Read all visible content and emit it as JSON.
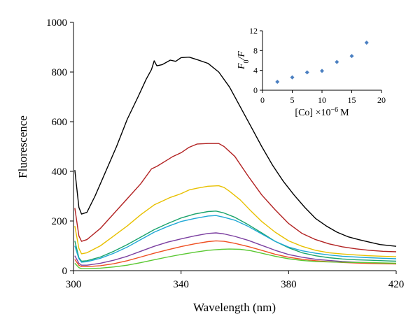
{
  "chart_data": [
    {
      "type": "line",
      "title": "",
      "xlabel": "Wavelength (nm)",
      "ylabel": "Fluorescence",
      "xlim": [
        300,
        420
      ],
      "ylim": [
        0,
        1000
      ],
      "xticks": [
        300,
        340,
        380,
        420
      ],
      "yticks": [
        0,
        200,
        400,
        600,
        800,
        1000
      ],
      "grid": false,
      "legend": "none",
      "series": [
        {
          "color": "#000000",
          "x": [
            300.5,
            302,
            303,
            305,
            308,
            312,
            316,
            320,
            324,
            327,
            329,
            330,
            331,
            333,
            336,
            338,
            340,
            343,
            346,
            350,
            354,
            358,
            362,
            366,
            370,
            374,
            378,
            382,
            386,
            390,
            394,
            398,
            402,
            406,
            410,
            414,
            420
          ],
          "y": [
            405,
            255,
            228,
            235,
            300,
            400,
            500,
            610,
            700,
            770,
            810,
            845,
            825,
            830,
            848,
            843,
            858,
            860,
            850,
            835,
            800,
            740,
            660,
            580,
            500,
            425,
            360,
            305,
            255,
            210,
            180,
            155,
            137,
            125,
            115,
            105,
            98
          ]
        },
        {
          "color": "#b22222",
          "x": [
            300.5,
            302,
            303,
            305,
            310,
            315,
            320,
            325,
            329,
            331,
            334,
            337,
            340,
            343,
            346,
            350,
            354,
            356,
            360,
            365,
            370,
            375,
            380,
            385,
            390,
            395,
            400,
            405,
            410,
            415,
            420
          ],
          "y": [
            252,
            140,
            118,
            125,
            170,
            230,
            290,
            350,
            410,
            420,
            440,
            460,
            475,
            497,
            510,
            512,
            512,
            500,
            460,
            380,
            305,
            245,
            190,
            150,
            125,
            108,
            96,
            88,
            82,
            78,
            76
          ]
        },
        {
          "color": "#e8c000",
          "x": [
            300.5,
            302,
            303,
            305,
            310,
            315,
            320,
            325,
            330,
            333,
            336,
            340,
            343,
            346,
            350,
            354,
            356,
            358,
            362,
            366,
            370,
            375,
            380,
            385,
            390,
            395,
            400,
            405,
            410,
            415,
            420
          ],
          "y": [
            180,
            90,
            68,
            72,
            100,
            140,
            180,
            225,
            265,
            280,
            295,
            310,
            325,
            332,
            340,
            342,
            335,
            320,
            285,
            240,
            198,
            155,
            120,
            98,
            82,
            72,
            67,
            63,
            60,
            58,
            56
          ]
        },
        {
          "color": "#1aa36b",
          "x": [
            300.5,
            302,
            303,
            305,
            310,
            315,
            320,
            325,
            330,
            335,
            340,
            345,
            350,
            353,
            356,
            360,
            365,
            370,
            375,
            380,
            385,
            390,
            395,
            400,
            405,
            410,
            415,
            420
          ],
          "y": [
            120,
            52,
            38,
            40,
            55,
            78,
            105,
            135,
            165,
            190,
            212,
            228,
            238,
            240,
            232,
            215,
            185,
            152,
            118,
            92,
            72,
            60,
            52,
            47,
            44,
            42,
            40,
            38
          ]
        },
        {
          "color": "#1fa8d6",
          "x": [
            300.5,
            302,
            303,
            305,
            310,
            315,
            320,
            325,
            330,
            335,
            340,
            345,
            350,
            353,
            356,
            360,
            365,
            370,
            375,
            380,
            385,
            390,
            395,
            400,
            405,
            410,
            415,
            420
          ],
          "y": [
            100,
            48,
            34,
            36,
            50,
            70,
            95,
            125,
            155,
            178,
            198,
            210,
            220,
            222,
            215,
            203,
            178,
            148,
            118,
            95,
            80,
            70,
            63,
            58,
            55,
            52,
            50,
            48
          ]
        },
        {
          "color": "#7b3fa0",
          "x": [
            300.5,
            302,
            303,
            305,
            310,
            315,
            320,
            325,
            330,
            335,
            340,
            345,
            350,
            353,
            356,
            360,
            365,
            370,
            375,
            380,
            385,
            390,
            395,
            400,
            405,
            410,
            415,
            420
          ],
          "y": [
            60,
            30,
            22,
            22,
            30,
            42,
            58,
            78,
            98,
            115,
            128,
            140,
            150,
            152,
            148,
            138,
            122,
            102,
            82,
            65,
            54,
            46,
            41,
            37,
            34,
            32,
            30,
            29
          ]
        },
        {
          "color": "#ef5022",
          "x": [
            300.5,
            302,
            303,
            305,
            310,
            315,
            320,
            325,
            330,
            335,
            340,
            345,
            350,
            353,
            356,
            360,
            365,
            370,
            375,
            380,
            385,
            390,
            395,
            400,
            405,
            410,
            415,
            420
          ],
          "y": [
            45,
            22,
            16,
            16,
            20,
            28,
            40,
            55,
            70,
            84,
            97,
            108,
            117,
            120,
            118,
            110,
            97,
            82,
            66,
            54,
            46,
            40,
            36,
            33,
            31,
            29,
            28,
            27
          ]
        },
        {
          "color": "#5ac832",
          "x": [
            300.5,
            302,
            303,
            305,
            310,
            315,
            320,
            325,
            330,
            335,
            340,
            345,
            350,
            355,
            358,
            362,
            366,
            370,
            375,
            380,
            385,
            390,
            395,
            400,
            405,
            410,
            415,
            420
          ],
          "y": [
            30,
            12,
            8,
            8,
            10,
            15,
            22,
            32,
            44,
            55,
            65,
            74,
            82,
            86,
            87,
            86,
            80,
            70,
            58,
            48,
            41,
            37,
            35,
            34,
            33,
            32,
            31,
            30
          ]
        }
      ]
    },
    {
      "type": "scatter",
      "title": "",
      "xlabel": "[Co] ×10",
      "xlabel_exp": "−6",
      "xlabel_unit": "M",
      "ylabel": "F",
      "ylabel_sub": "0",
      "ylabel_tail": "/F",
      "xlim": [
        0,
        20
      ],
      "ylim": [
        0,
        12
      ],
      "xticks": [
        0,
        5,
        10,
        15,
        20
      ],
      "yticks": [
        0,
        4,
        8,
        12
      ],
      "grid": false,
      "legend": "none",
      "color": "#4a7fc1",
      "x": [
        2.5,
        5,
        7.5,
        10,
        12.5,
        15,
        17.5
      ],
      "y": [
        1.7,
        2.6,
        3.6,
        3.9,
        5.7,
        6.9,
        9.6
      ]
    }
  ]
}
